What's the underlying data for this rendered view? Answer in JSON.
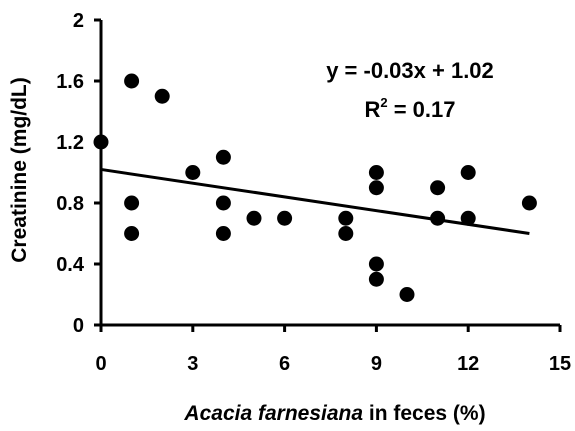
{
  "chart_data": {
    "type": "scatter",
    "title": "",
    "xlabel_italic": "Acacia farnesiana",
    "xlabel_rest": " in feces (%)",
    "ylabel": "Creatinine (mg/dL)",
    "xlim": [
      0,
      15
    ],
    "ylim": [
      0,
      2
    ],
    "xticks": [
      "0",
      "3",
      "6",
      "9",
      "12",
      "15"
    ],
    "yticks": [
      "0",
      "0.4",
      "0.8",
      "1.2",
      "1.6",
      "2"
    ],
    "grid": false,
    "legend": "none",
    "points": [
      {
        "x": 0,
        "y": 1.2
      },
      {
        "x": 1,
        "y": 1.6
      },
      {
        "x": 1,
        "y": 0.8
      },
      {
        "x": 1,
        "y": 0.6
      },
      {
        "x": 2,
        "y": 1.5
      },
      {
        "x": 3,
        "y": 1.0
      },
      {
        "x": 4,
        "y": 1.1
      },
      {
        "x": 4,
        "y": 0.8
      },
      {
        "x": 4,
        "y": 0.6
      },
      {
        "x": 5,
        "y": 0.7
      },
      {
        "x": 6,
        "y": 0.7
      },
      {
        "x": 8,
        "y": 0.7
      },
      {
        "x": 8,
        "y": 0.6
      },
      {
        "x": 9,
        "y": 1.0
      },
      {
        "x": 9,
        "y": 0.9
      },
      {
        "x": 9,
        "y": 0.4
      },
      {
        "x": 9,
        "y": 0.3
      },
      {
        "x": 10,
        "y": 0.2
      },
      {
        "x": 11,
        "y": 0.9
      },
      {
        "x": 11,
        "y": 0.7
      },
      {
        "x": 12,
        "y": 1.0
      },
      {
        "x": 12,
        "y": 0.7
      },
      {
        "x": 14,
        "y": 0.8
      }
    ],
    "trendline": {
      "slope": -0.03,
      "intercept": 1.02,
      "x_start": 0,
      "x_end": 14
    },
    "equation_text": "y = -0.03x + 1.02",
    "r2_prefix": "R",
    "r2_sup": "2",
    "r2_rest": " = 0.17",
    "colors": {
      "marker": "#000000",
      "line": "#000000",
      "axis": "#000000"
    }
  }
}
